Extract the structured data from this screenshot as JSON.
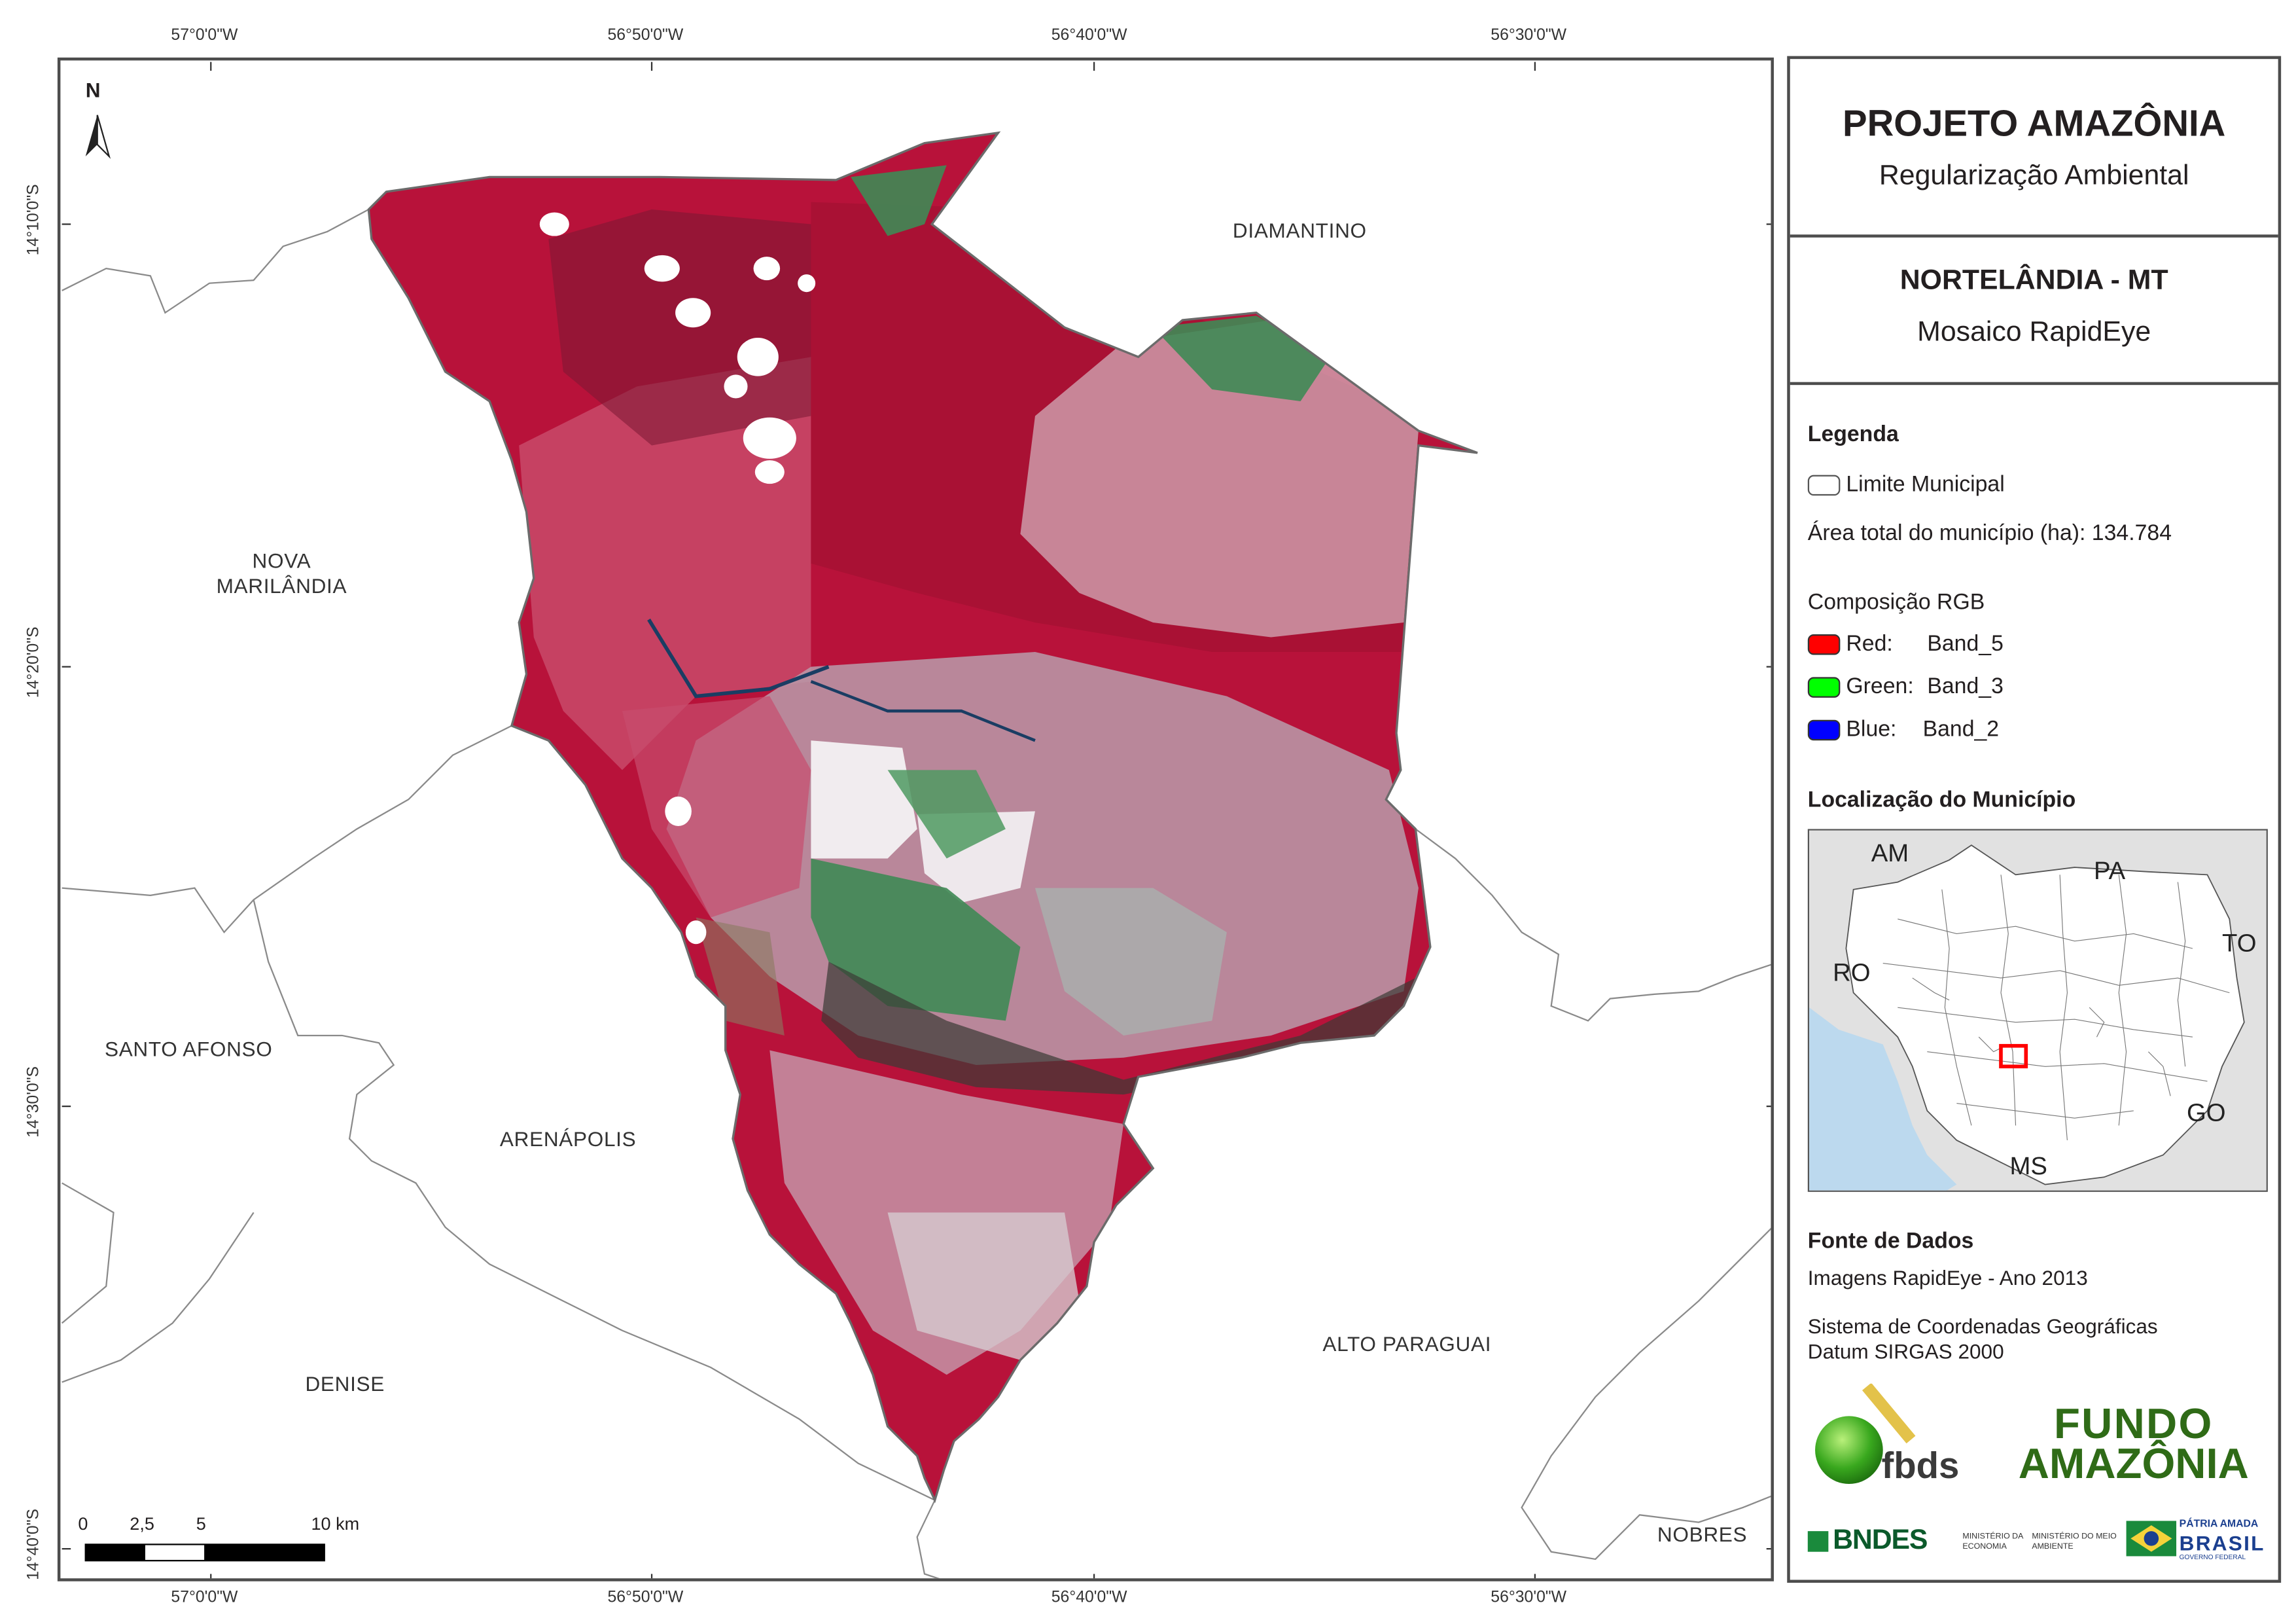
{
  "coordinates": {
    "top": [
      "57°0'0\"W",
      "56°50'0\"W",
      "56°40'0\"W",
      "56°30'0\"W"
    ],
    "bottom": [
      "57°0'0\"W",
      "56°50'0\"W",
      "56°40'0\"W",
      "56°30'0\"W"
    ],
    "left": [
      "14°10'0\"S",
      "14°20'0\"S",
      "14°30'0\"S",
      "14°40'0\"S"
    ]
  },
  "map": {
    "north_label": "N",
    "towns": {
      "diamantino": "DIAMANTINO",
      "nova_marilandia_1": "NOVA",
      "nova_marilandia_2": "MARILÂNDIA",
      "santo_afonso": "SANTO AFONSO",
      "arenapolis": "ARENÁPOLIS",
      "denise": "DENISE",
      "alto_paraguai": "ALTO PARAGUAI",
      "nobres": "NOBRES"
    },
    "scale_bar": {
      "labels": [
        "0",
        "2,5",
        "5",
        "10 km"
      ]
    },
    "colors": {
      "vegetation": "#b8123a",
      "cleared": "#d9c4cc",
      "crop": "#3f8a55"
    }
  },
  "panel": {
    "title": "PROJETO AMAZÔNIA",
    "subtitle": "Regularização Ambiental",
    "municipality": "NORTELÂNDIA - MT",
    "product": "Mosaico RapidEye",
    "legend": {
      "title": "Legenda",
      "limit_label": "Limite Municipal",
      "area_label": "Área total do município (ha): 134.784",
      "rgb_title": "Composição RGB",
      "bands": [
        {
          "channel": "Red:",
          "band": "Band_5",
          "color": "#ff0000"
        },
        {
          "channel": "Green:",
          "band": "Band_3",
          "color": "#00ff00"
        },
        {
          "channel": "Blue:",
          "band": "Band_2",
          "color": "#0000ff"
        }
      ]
    },
    "location": {
      "title": "Localização do Município",
      "states": [
        "AM",
        "PA",
        "TO",
        "RO",
        "GO",
        "MS"
      ],
      "colors": {
        "neighbor": "#e1e1e1",
        "water": "#bcd9ee",
        "highlight": "#ff0000"
      }
    },
    "sources": {
      "title": "Fonte de Dados",
      "imagery": "Imagens RapidEye - Ano 2013",
      "crs": "Sistema de Coordenadas Geográficas",
      "datum": "Datum SIRGAS 2000"
    },
    "logos": {
      "fbds": "fbds",
      "fundo_1": "FUNDO",
      "fundo_2": "AMAZÔNIA",
      "bndes": "BNDES",
      "ministry_1": "MINISTÉRIO DA ECONOMIA",
      "ministry_2": "MINISTÉRIO DO MEIO AMBIENTE",
      "patria_1": "PÁTRIA AMADA",
      "patria_2": "BRASIL",
      "patria_3": "GOVERNO FEDERAL"
    }
  }
}
